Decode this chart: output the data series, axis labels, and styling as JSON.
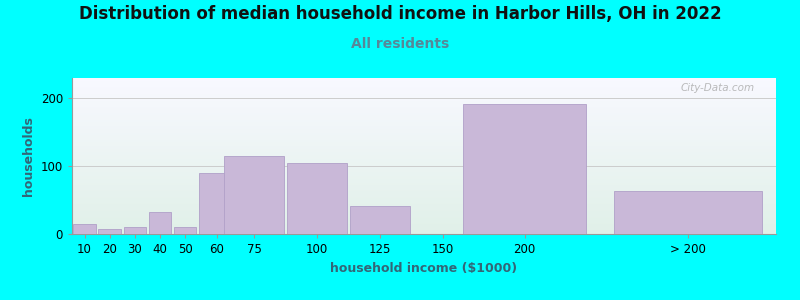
{
  "title": "Distribution of median household income in Harbor Hills, OH in 2022",
  "subtitle": "All residents",
  "xlabel": "household income ($1000)",
  "ylabel": "households",
  "background_color": "#00FFFF",
  "plot_bg_top": "#e0f0e8",
  "plot_bg_bottom": "#f8f8ff",
  "bar_color": "#c9b8d8",
  "bar_edge_color": "#b0a0c8",
  "categories": [
    "10",
    "20",
    "30",
    "40",
    "50",
    "60",
    "75",
    "100",
    "125",
    "150",
    "200",
    "> 200"
  ],
  "bar_heights": [
    15,
    8,
    10,
    33,
    10,
    90,
    115,
    105,
    42,
    0,
    192,
    63
  ],
  "bar_widths": [
    10,
    10,
    10,
    10,
    10,
    15,
    25,
    25,
    25,
    25,
    50,
    60
  ],
  "bar_lefts": [
    5,
    15,
    25,
    35,
    45,
    55,
    65,
    90,
    115,
    140,
    160,
    220
  ],
  "ylim": [
    0,
    230
  ],
  "yticks": [
    0,
    100,
    200
  ],
  "watermark": "City-Data.com",
  "title_fontsize": 12,
  "subtitle_fontsize": 10,
  "axis_label_fontsize": 9,
  "tick_fontsize": 8.5
}
